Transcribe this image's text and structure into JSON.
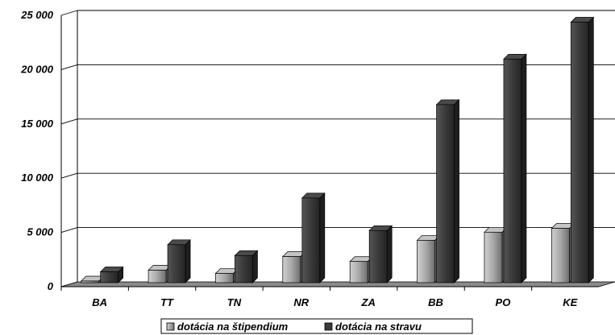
{
  "chart_data": {
    "type": "bar",
    "categories": [
      "BA",
      "TT",
      "TN",
      "NR",
      "ZA",
      "BB",
      "PO",
      "KE"
    ],
    "series": [
      {
        "name": "dotácia na štipendium",
        "values": [
          150,
          1150,
          850,
          2400,
          1950,
          3900,
          4650,
          5000
        ],
        "color": "#9a9a9a"
      },
      {
        "name": "dotácia na stravu",
        "values": [
          1000,
          3500,
          2500,
          7800,
          4800,
          16400,
          20600,
          24000
        ],
        "color": "#3a3a3a"
      }
    ],
    "y_ticks": [
      "0",
      "5 000",
      "10 000",
      "15 000",
      "20 000",
      "25 000"
    ],
    "ylim": [
      0,
      25000
    ],
    "grid": true,
    "style": "3d-bar",
    "legend_position": "bottom"
  }
}
